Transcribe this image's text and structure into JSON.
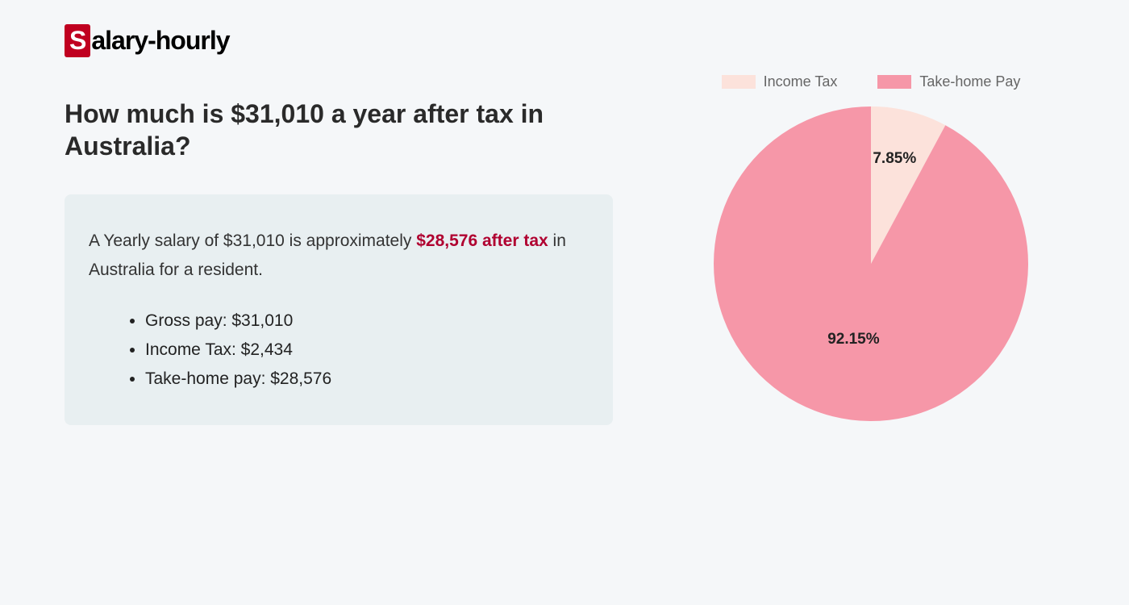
{
  "logo": {
    "initial": "S",
    "rest": "alary-hourly"
  },
  "heading": "How much is $31,010 a year after tax in Australia?",
  "summary": {
    "pre": "A Yearly salary of $31,010 is approximately ",
    "highlight": "$28,576 after tax",
    "post": " in Australia for a resident."
  },
  "bullets": [
    "Gross pay: $31,010",
    "Income Tax: $2,434",
    "Take-home pay: $28,576"
  ],
  "chart": {
    "type": "pie",
    "radius": 195,
    "background_color": "#f5f7f9",
    "slices": [
      {
        "name": "Income Tax",
        "value": 7.85,
        "color": "#fce2db",
        "label": "7.85%"
      },
      {
        "name": "Take-home Pay",
        "value": 92.15,
        "color": "#f697a8",
        "label": "92.15%"
      }
    ],
    "legend_text_color": "#666666",
    "legend_fontsize": 18,
    "slice_label_fontsize": 19,
    "slice_label_color": "#222222",
    "start_angle_deg": -90
  }
}
